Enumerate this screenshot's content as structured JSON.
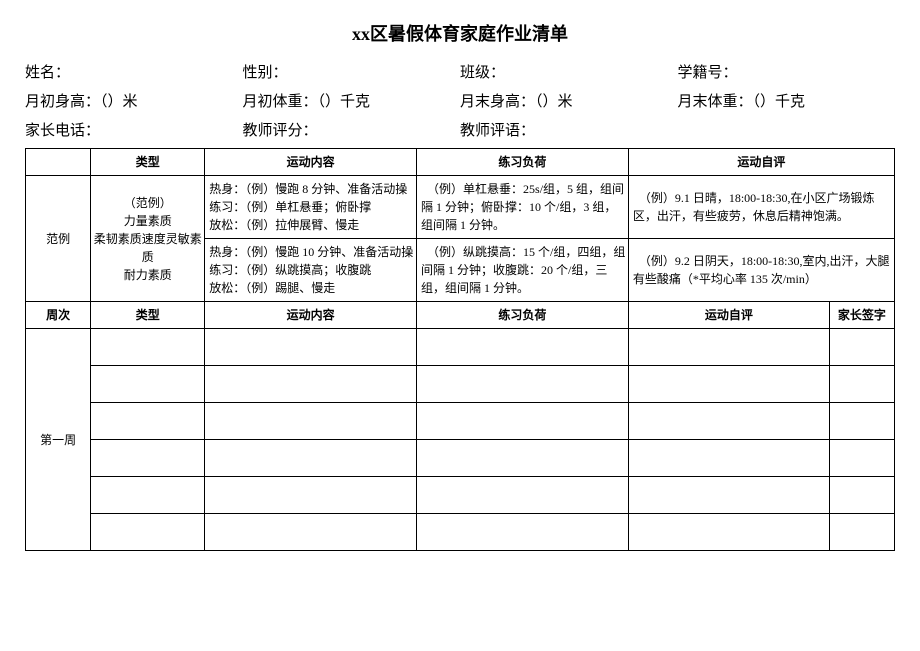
{
  "title": "xx区暑假体育家庭作业清单",
  "info": {
    "row1": {
      "name_label": "姓名：",
      "gender_label": "性别：",
      "class_label": "班级：",
      "sid_label": "学籍号："
    },
    "row2": {
      "start_h": "月初身高：（）米",
      "start_w": "月初体重：（）千克",
      "end_h": "月末身高：（）米",
      "end_w": "月末体重：（）千克"
    },
    "row3": {
      "parent_phone": "家长电话：",
      "teacher_score": "教师评分：",
      "teacher_comment": "教师评语："
    }
  },
  "header1": {
    "type": "类型",
    "content": "运动内容",
    "load": "练习负荷",
    "eval": "运动自评"
  },
  "example": {
    "label": "范例",
    "type_text": "（范例）\n力量素质\n柔韧素质速度灵敏素质\n耐力素质",
    "r1_content": "热身：（例）慢跑 8 分钟、准备活动操\n练习：（例）单杠悬垂；俯卧撑\n放松：（例）拉伸展臂、慢走",
    "r1_load": "　（例）单杠悬垂：25s/组，5 组，组间隔 1 分钟；俯卧撑：10 个/组，3 组，组间隔 1 分钟。",
    "r1_eval": "　（例）9.1 日晴，18:00-18:30,在小区广场锻炼区，出汗，有些疲劳，休息后精神饱满。",
    "r2_content": "热身：（例）慢跑 10 分钟、准备活动操\n练习：（例）纵跳摸高；收腹跳\n放松：（例）踢腿、慢走",
    "r2_load": "　（例）纵跳摸高：15 个/组，四组，组间隔 1 分钟；收腹跳：20 个/组，三组，组间隔 1 分钟。",
    "r2_eval": "　（例）9.2 日阴天，18:00-18:30,室内,出汗，大腿有些酸痛（*平均心率 135 次/min）"
  },
  "header2": {
    "week": "周次",
    "type": "类型",
    "content": "运动内容",
    "load": "练习负荷",
    "eval": "运动自评",
    "sign": "家长签字"
  },
  "week1_label": "第一周"
}
